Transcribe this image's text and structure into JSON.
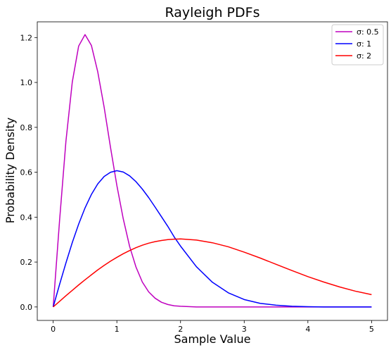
{
  "chart_data": {
    "type": "line",
    "title": "Rayleigh PDFs",
    "xlabel": "Sample Value",
    "ylabel": "Probability Density",
    "xlim": [
      -0.25,
      5.25
    ],
    "ylim": [
      -0.06,
      1.27
    ],
    "x_ticks": [
      0,
      1,
      2,
      3,
      4,
      5
    ],
    "x_tick_labels": [
      "0",
      "1",
      "2",
      "3",
      "4",
      "5"
    ],
    "y_ticks": [
      0.0,
      0.2,
      0.4,
      0.6,
      0.8,
      1.0,
      1.2
    ],
    "y_tick_labels": [
      "0.0",
      "0.2",
      "0.4",
      "0.6",
      "0.8",
      "1.0",
      "1.2"
    ],
    "grid": false,
    "legend_position": "top-right",
    "x": [
      0,
      0.1,
      0.2,
      0.3,
      0.4,
      0.5,
      0.6,
      0.7,
      0.8,
      0.9,
      1.0,
      1.1,
      1.2,
      1.3,
      1.4,
      1.5,
      1.6,
      1.7,
      1.8,
      1.9,
      2.0,
      2.25,
      2.5,
      2.75,
      3.0,
      3.25,
      3.5,
      3.75,
      4.0,
      4.25,
      4.5,
      4.75,
      5.0
    ],
    "series": [
      {
        "name": "σ: 0.5",
        "color": "#bf00bf",
        "values": [
          0,
          0.384,
          0.738,
          1.002,
          1.162,
          1.213,
          1.165,
          1.047,
          0.89,
          0.711,
          0.541,
          0.393,
          0.27,
          0.178,
          0.111,
          0.067,
          0.039,
          0.021,
          0.011,
          0.005,
          0.003,
          0.0,
          0.0,
          0.0,
          0.0,
          0.0,
          0.0,
          0.0,
          0.0,
          0.0,
          0.0,
          0.0,
          0.0
        ]
      },
      {
        "name": "σ: 1",
        "color": "#0000ff",
        "values": [
          0,
          0.1,
          0.196,
          0.287,
          0.369,
          0.441,
          0.501,
          0.548,
          0.581,
          0.6,
          0.607,
          0.601,
          0.584,
          0.558,
          0.525,
          0.487,
          0.445,
          0.402,
          0.359,
          0.312,
          0.271,
          0.179,
          0.11,
          0.063,
          0.033,
          0.016,
          0.008,
          0.003,
          0.001,
          0.0,
          0.0,
          0.0,
          0.0
        ]
      },
      {
        "name": "σ: 2",
        "color": "#ff0000",
        "values": [
          0,
          0.025,
          0.05,
          0.074,
          0.098,
          0.121,
          0.143,
          0.165,
          0.185,
          0.204,
          0.221,
          0.237,
          0.251,
          0.264,
          0.275,
          0.284,
          0.291,
          0.296,
          0.3,
          0.302,
          0.303,
          0.298,
          0.286,
          0.268,
          0.244,
          0.218,
          0.19,
          0.162,
          0.135,
          0.111,
          0.089,
          0.07,
          0.055
        ]
      }
    ]
  }
}
